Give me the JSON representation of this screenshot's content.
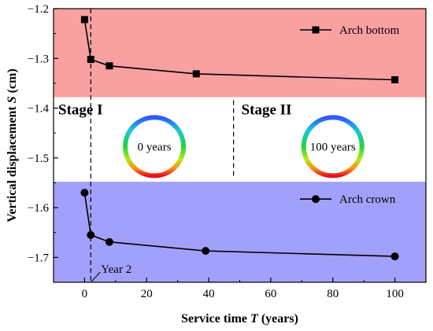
{
  "chart_data": {
    "type": "line",
    "xlabel": "Service time T (years)",
    "xlabel_parts": {
      "before": "Service time ",
      "italic": "T",
      "after": " (years)"
    },
    "ylabel": "Vertical displacement S (cm)",
    "ylabel_parts": {
      "before": "Vertical displacement ",
      "italic": "S",
      "after": " (cm)"
    },
    "xlim": [
      -10,
      110
    ],
    "ylim": [
      -1.75,
      -1.2
    ],
    "xticks": [
      0,
      20,
      40,
      60,
      80,
      100
    ],
    "xtick_labels": [
      "0",
      "20",
      "40",
      "60",
      "80",
      "100"
    ],
    "yticks": [
      -1.2,
      -1.3,
      -1.4,
      -1.5,
      -1.6,
      -1.7
    ],
    "ytick_labels": [
      "−1.2",
      "−1.3",
      "−1.4",
      "−1.5",
      "−1.6",
      "−1.7"
    ],
    "grid": false,
    "legend_placement": "top-right of each shaded band",
    "series": [
      {
        "name": "Arch bottom",
        "marker": "square",
        "color": "#000000",
        "x": [
          0,
          2,
          8,
          36,
          100
        ],
        "y": [
          -1.222,
          -1.302,
          -1.315,
          -1.331,
          -1.343
        ]
      },
      {
        "name": "Arch crown",
        "marker": "circle",
        "color": "#000000",
        "x": [
          0,
          2,
          8,
          39,
          100
        ],
        "y": [
          -1.57,
          -1.655,
          -1.669,
          -1.687,
          -1.698
        ]
      }
    ],
    "bands": [
      {
        "y_from": -1.2,
        "y_to": -1.378,
        "color": "#f9a0a0"
      },
      {
        "y_from": -1.548,
        "y_to": -1.75,
        "color": "#a1a1fb"
      }
    ],
    "vlines": [
      {
        "x": 2,
        "style": "dashed",
        "span": "full"
      },
      {
        "x": 48,
        "style": "dashed",
        "span": "middle"
      }
    ],
    "stages": [
      "Stage I",
      "Stage II"
    ],
    "rings": [
      "0 years",
      "100 years"
    ],
    "annotation": {
      "text": "Year 2",
      "x": 2,
      "y": -1.75
    }
  }
}
